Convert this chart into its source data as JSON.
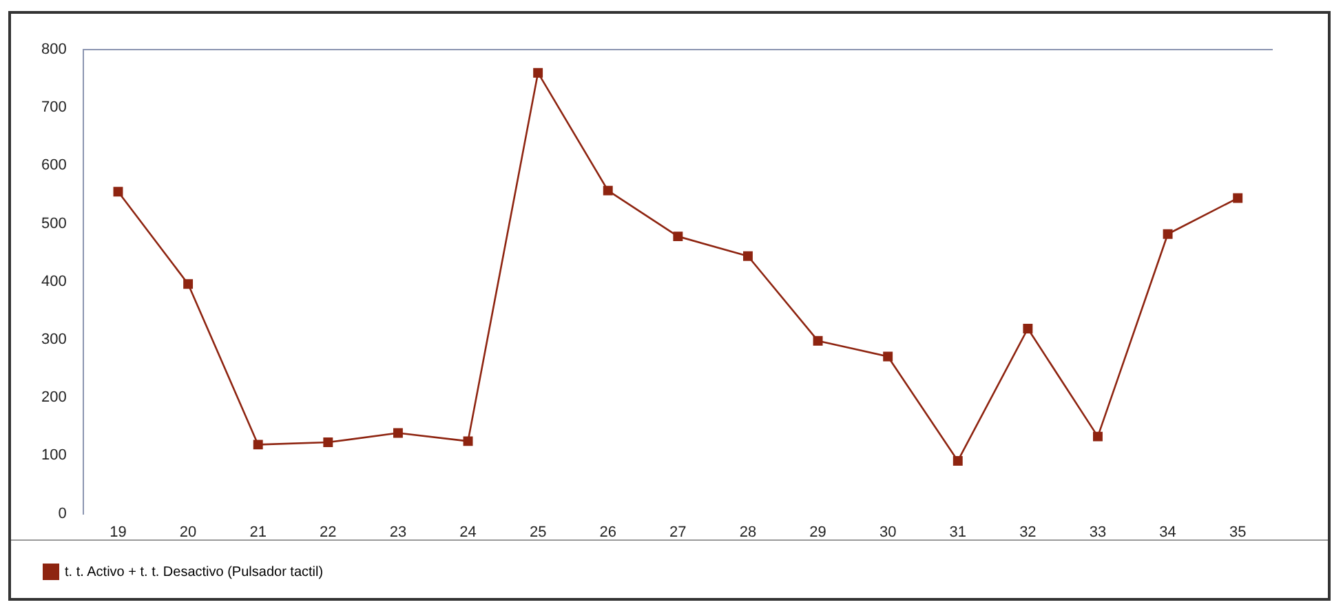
{
  "chart_data": {
    "type": "line",
    "categories": [
      "19",
      "20",
      "21",
      "22",
      "23",
      "24",
      "25",
      "26",
      "27",
      "28",
      "29",
      "30",
      "31",
      "32",
      "33",
      "34",
      "35"
    ],
    "series": [
      {
        "name": "t. t. Activo + t. t. Desactivo (Pulsador tactil)",
        "color": "#8e2410",
        "values": [
          555,
          396,
          119,
          123,
          139,
          125,
          760,
          557,
          478,
          444,
          298,
          271,
          91,
          319,
          133,
          482,
          544
        ]
      }
    ],
    "ylim": [
      0,
      800
    ],
    "yticks": [
      0,
      100,
      200,
      300,
      400,
      500,
      600,
      700,
      800
    ],
    "grid": false,
    "legend": "bottom left",
    "marker": "square",
    "line_style": "solid"
  }
}
